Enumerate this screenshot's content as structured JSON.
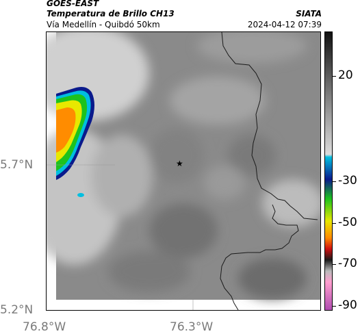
{
  "header": {
    "satellite": "GOES-EAST",
    "product": "Temperatura de Brillo CH13",
    "route": "Vía Medellín - Quibdó 50km",
    "organization": "SIATA",
    "datetime": "2024-04-12 07:39"
  },
  "map": {
    "lat_labels": [
      "5.7°N",
      "5.2°N"
    ],
    "lon_labels": [
      "76.8°W",
      "76.3°W"
    ],
    "marker_icon": "star-icon"
  },
  "colorbar": {
    "labels": [
      "20",
      "-30",
      "-50",
      "-70",
      "-90"
    ],
    "colors": {
      "black": "#111111",
      "light_gray": "#dddddd",
      "cyan": "#00bfe0",
      "blue": "#0a1a8c",
      "green": "#1dc21d",
      "yellow": "#e8e800",
      "orange": "#ff8c00",
      "red": "#d01010",
      "pink": "#ff9ecf",
      "magenta": "#b04cb0"
    }
  }
}
